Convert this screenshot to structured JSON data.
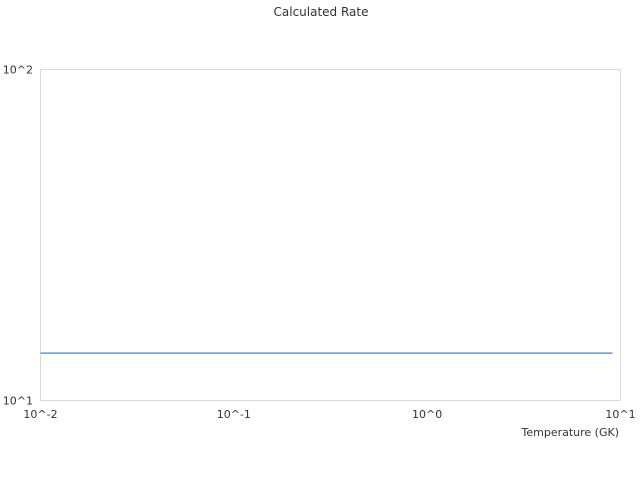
{
  "chart_data": {
    "type": "line",
    "title": "Calculated Rate",
    "xlabel": "Temperature (GK)",
    "ylabel": "",
    "x_scale": "log",
    "y_scale": "log",
    "xlim": [
      0.01,
      10
    ],
    "ylim": [
      10,
      100
    ],
    "x_ticks": [
      "10^-2",
      "10^-1",
      "10^0",
      "10^1"
    ],
    "y_ticks": [
      "10^1",
      "10^2"
    ],
    "grid": false,
    "legend": "none",
    "series": [
      {
        "color": "#5b9bd5",
        "x": [
          0.01,
          9.1
        ],
        "y": [
          13.9,
          13.9
        ]
      }
    ],
    "border_color": "#d9d9d9"
  }
}
